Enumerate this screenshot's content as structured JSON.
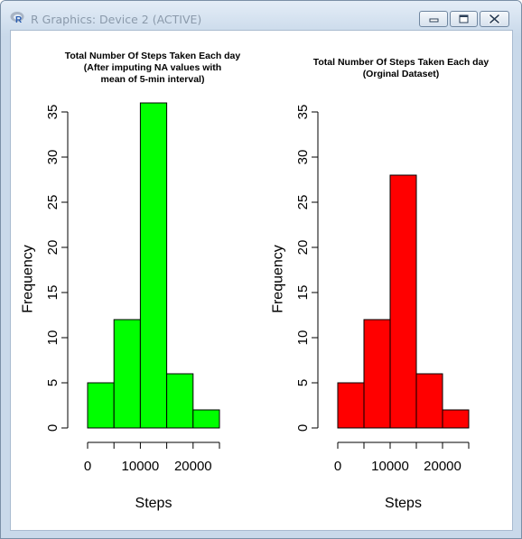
{
  "window": {
    "title": "R Graphics: Device 2 (ACTIVE)",
    "app_icon": "r-logo-icon",
    "controls": [
      "minimize-icon",
      "maximize-icon",
      "close-icon"
    ]
  },
  "colors": {
    "imputed_bars": "#00ff00",
    "original_bars": "#ff0000",
    "bar_border": "#000000"
  },
  "chart_data": [
    {
      "type": "bar",
      "title": "Total Number Of Steps Taken Each day\n(After imputing NA values with\nmean of 5-min interval)",
      "xlabel": "Steps",
      "ylabel": "Frequency",
      "bins": [
        [
          0,
          5000
        ],
        [
          5000,
          10000
        ],
        [
          10000,
          15000
        ],
        [
          15000,
          20000
        ],
        [
          20000,
          25000
        ]
      ],
      "values": [
        5,
        12,
        36,
        6,
        2
      ],
      "xlim": [
        0,
        25000
      ],
      "xticks": [
        0,
        5000,
        10000,
        15000,
        20000,
        25000
      ],
      "xtick_labels": [
        "0",
        "10000",
        "20000"
      ],
      "yticks": [
        0,
        5,
        10,
        15,
        20,
        25,
        30,
        35
      ],
      "ytick_labels": [
        "0",
        "5",
        "10",
        "15",
        "20",
        "25",
        "30",
        "35"
      ],
      "ylim": [
        0,
        35
      ],
      "grid": false,
      "legend": "none"
    },
    {
      "type": "bar",
      "title": "Total Number Of Steps Taken Each day\n(Orginal Dataset)",
      "xlabel": "Steps",
      "ylabel": "Frequency",
      "bins": [
        [
          0,
          5000
        ],
        [
          5000,
          10000
        ],
        [
          10000,
          15000
        ],
        [
          15000,
          20000
        ],
        [
          20000,
          25000
        ]
      ],
      "values": [
        5,
        12,
        28,
        6,
        2
      ],
      "xlim": [
        0,
        25000
      ],
      "xticks": [
        0,
        5000,
        10000,
        15000,
        20000,
        25000
      ],
      "xtick_labels": [
        "0",
        "10000",
        "20000"
      ],
      "yticks": [
        0,
        5,
        10,
        15,
        20,
        25,
        30,
        35
      ],
      "ytick_labels": [
        "0",
        "5",
        "10",
        "15",
        "20",
        "25",
        "30",
        "35"
      ],
      "ylim": [
        0,
        35
      ],
      "grid": false,
      "legend": "none"
    }
  ]
}
